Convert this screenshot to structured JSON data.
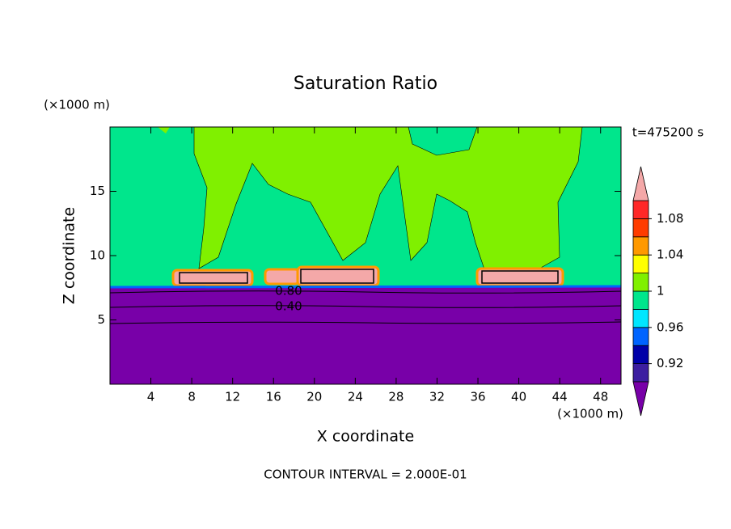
{
  "chart_data": {
    "type": "contour",
    "title": "Saturation Ratio",
    "xlabel": "X coordinate",
    "ylabel": "Z coordinate",
    "x_unit": "(×1000 m)",
    "y_unit": "(×1000 m)",
    "time_label": "t=475200 s",
    "footer": "CONTOUR INTERVAL = 2.000E-01",
    "xlim": [
      0,
      50
    ],
    "xticks": [
      4,
      8,
      12,
      16,
      20,
      24,
      28,
      32,
      36,
      40,
      44,
      48
    ],
    "ylim": [
      0,
      20
    ],
    "yticks": [
      5,
      10,
      15
    ],
    "contour_labels": [
      {
        "value": 0.8,
        "label": "0.80"
      },
      {
        "value": 0.4,
        "label": "0.40"
      }
    ],
    "colorbar": {
      "levels": [
        0.9,
        0.92,
        0.94,
        0.96,
        0.98,
        1,
        1.02,
        1.04,
        1.06,
        1.08,
        1.1
      ],
      "colors": [
        "#3c1ea0",
        "#0000a8",
        "#0064ff",
        "#00e6ff",
        "#00e68c",
        "#80f000",
        "#ffff00",
        "#ff9900",
        "#ff3c00",
        "#ff2828"
      ],
      "under_color": "#7800a8",
      "over_color": "#f4a8a8",
      "ticks": [
        0.92,
        0.96,
        1,
        1.04,
        1.08
      ]
    }
  }
}
